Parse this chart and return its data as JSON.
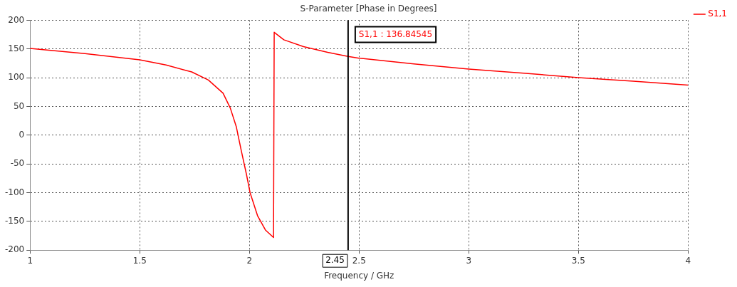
{
  "chart_data": {
    "type": "line",
    "title": "S-Parameter [Phase in Degrees]",
    "xlabel": "Frequency / GHz",
    "series": [
      {
        "name": "S1,1",
        "color": "#ff0000",
        "x": [
          1,
          1.25,
          1.5,
          1.62,
          1.737,
          1.813,
          1.88,
          1.913,
          1.94,
          1.963,
          1.987,
          2.003,
          2.037,
          2.073,
          2.11,
          2.113,
          2.157,
          2.247,
          2.357,
          2.45,
          2.5,
          2.75,
          3,
          3.25,
          3.5,
          3.75,
          4
        ],
        "values": [
          151,
          142,
          131,
          122,
          110,
          96,
          73,
          47,
          15,
          -27,
          -69,
          -100,
          -140,
          -165,
          -178,
          179,
          166,
          154,
          144,
          137,
          134,
          124,
          115,
          108,
          100,
          94,
          87
        ]
      }
    ],
    "xlim": [
      1,
      4
    ],
    "xticks": [
      1,
      1.5,
      2,
      2.5,
      3,
      3.5,
      4
    ],
    "ylim": [
      -200,
      200
    ],
    "yticks": [
      -200,
      -150,
      -100,
      -50,
      0,
      50,
      100,
      150,
      200
    ],
    "grid": true,
    "legend": "top right",
    "marker": "none",
    "line_style": "solid",
    "ref_lines": [
      {
        "axis": "x",
        "value": 2.45,
        "label": "2.45",
        "color": "#000000"
      }
    ],
    "annotations": [
      "S1,1 : 136.84545"
    ]
  }
}
